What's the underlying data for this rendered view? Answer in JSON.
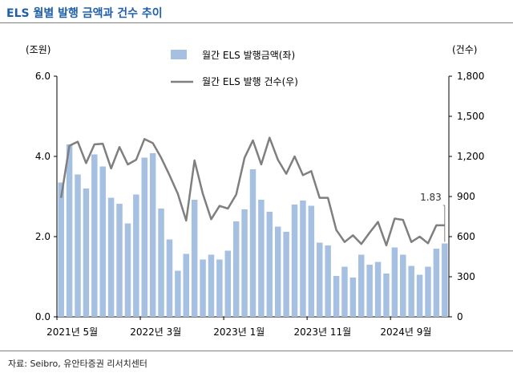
{
  "title": "ELS 월별 발행 금액과 건수 추이",
  "source": "자료: Seibro, 유안타증권 리서치센터",
  "colors": {
    "bar": "#a6c0e2",
    "line": "#7f7f7f",
    "axis": "#000000"
  },
  "chart_data": {
    "type": "bar+line",
    "left_unit": "(조원)",
    "right_unit": "(건수)",
    "left_ylim": [
      0,
      6
    ],
    "right_ylim": [
      0,
      1800
    ],
    "left_ticks": [
      "0.0",
      "2.0",
      "4.0",
      "6.0"
    ],
    "right_ticks": [
      "0",
      "300",
      "600",
      "900",
      "1,200",
      "1,500",
      "1,800"
    ],
    "x_tick_labels": [
      "2021년 5월",
      "2022년 3월",
      "2023년 1월",
      "2023년 11월",
      "2024년 9월"
    ],
    "x_tick_index": [
      0,
      10,
      20,
      30,
      40
    ],
    "annotation": {
      "text": "1.83",
      "series": "amount",
      "index": 46
    },
    "series": [
      {
        "name": "월간 ELS 발행금액(좌)",
        "kind": "bar",
        "axis": "left",
        "values": [
          3.35,
          4.3,
          3.55,
          3.2,
          4.05,
          3.75,
          2.97,
          2.82,
          2.33,
          3.05,
          3.97,
          4.08,
          2.7,
          1.93,
          1.15,
          1.57,
          2.92,
          1.43,
          1.55,
          1.43,
          1.65,
          2.38,
          2.68,
          3.68,
          2.92,
          2.62,
          2.25,
          2.12,
          2.8,
          2.9,
          2.77,
          1.85,
          1.78,
          1.02,
          1.25,
          0.98,
          1.55,
          1.3,
          1.37,
          1.08,
          1.73,
          1.55,
          1.27,
          1.05,
          1.25,
          1.7,
          1.83
        ]
      },
      {
        "name": "월간 ELS 발행 건수(우)",
        "kind": "line",
        "axis": "right",
        "values": [
          890,
          1280,
          1310,
          1150,
          1290,
          1295,
          1110,
          1270,
          1140,
          1175,
          1330,
          1300,
          1190,
          1060,
          920,
          720,
          1170,
          920,
          730,
          830,
          810,
          915,
          1190,
          1320,
          1140,
          1340,
          1175,
          1070,
          1200,
          1060,
          1090,
          890,
          890,
          650,
          560,
          610,
          545,
          630,
          710,
          535,
          735,
          725,
          560,
          600,
          550,
          685,
          685
        ]
      }
    ]
  }
}
